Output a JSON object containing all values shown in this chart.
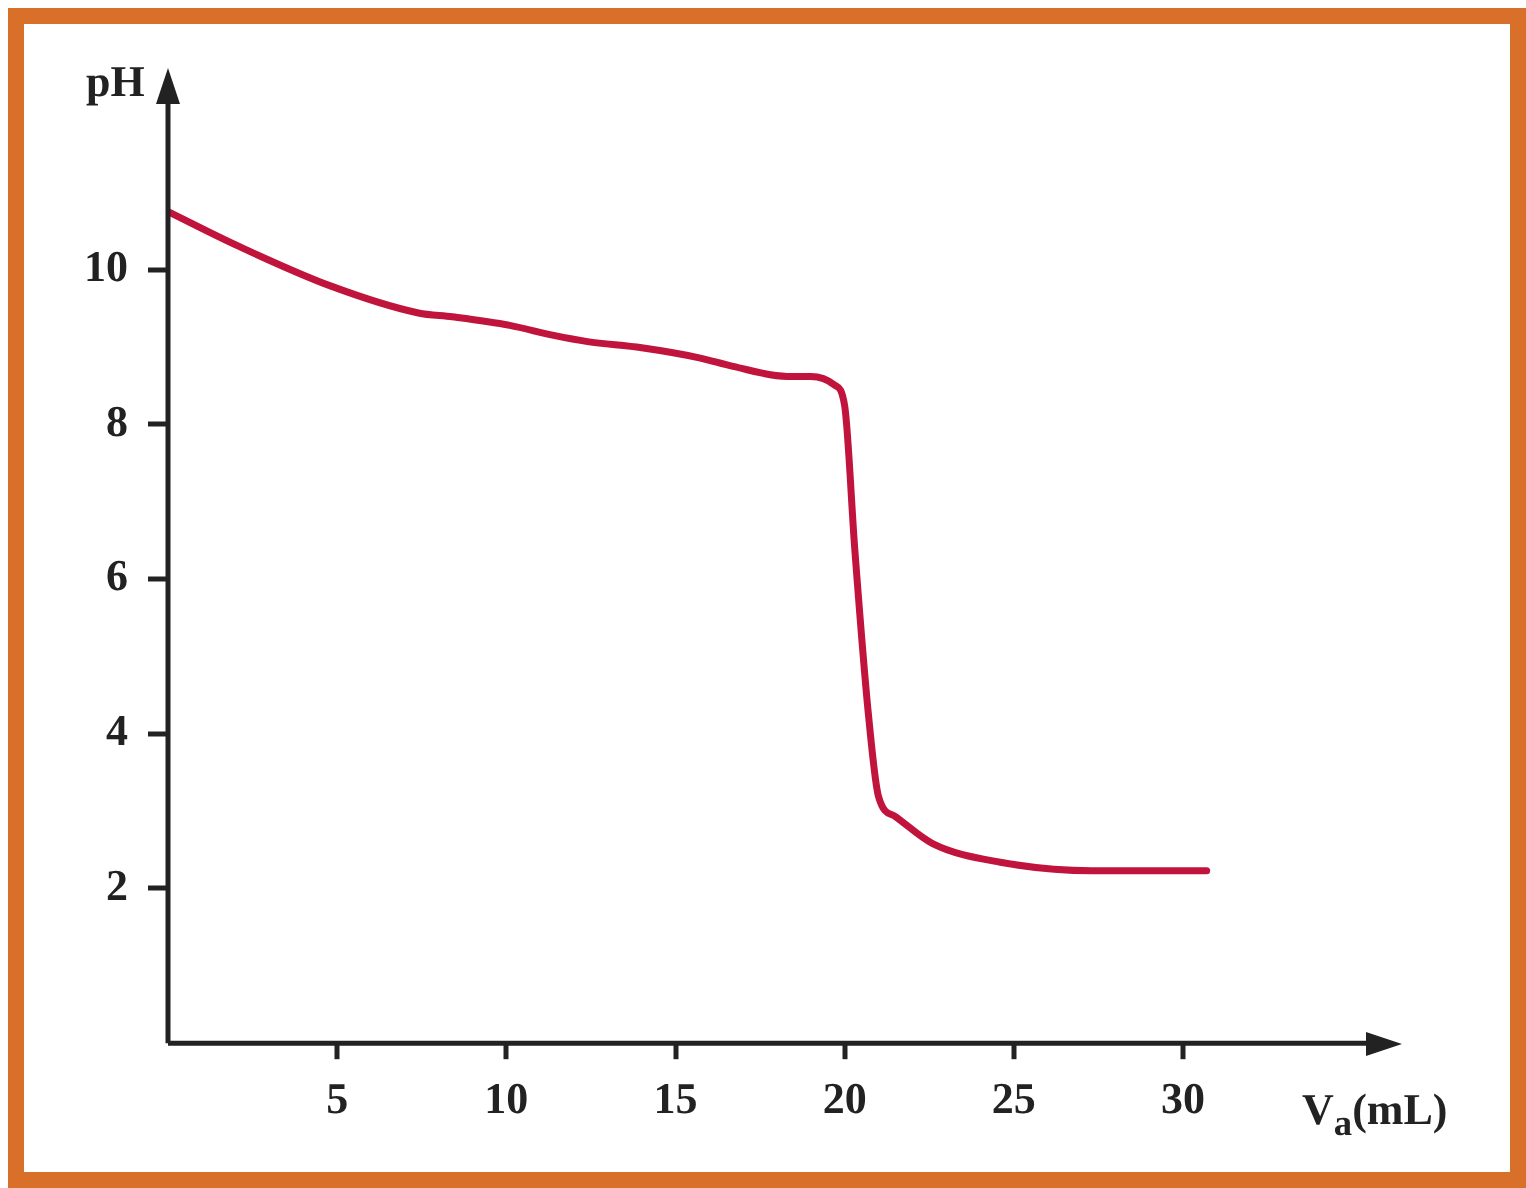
{
  "chart_data": {
    "type": "line",
    "xlabel": "V$_{a}$(mL)",
    "ylabel": "pH",
    "xlim": [
      0,
      36
    ],
    "ylim": [
      0,
      12.4
    ],
    "xticks": [
      5,
      10,
      15,
      20,
      25,
      30
    ],
    "yticks": [
      2,
      4,
      6,
      8,
      10
    ],
    "grid": false,
    "legend": false,
    "marker": "none",
    "line_style": "solid",
    "series": [
      {
        "color": "#c0143c",
        "x": [
          0,
          2.1,
          4.8,
          7.4,
          8.4,
          10.1,
          11.4,
          12.4,
          14.0,
          15.7,
          16.7,
          18.3,
          19.0,
          19.7,
          20.0,
          20.3,
          20.7,
          21.0,
          21.5,
          22.6,
          24.6,
          27.3,
          29.0,
          30.7
        ],
        "values": [
          10.75,
          10.3,
          9.79,
          9.44,
          9.39,
          9.28,
          9.15,
          9.07,
          8.99,
          8.86,
          8.75,
          8.62,
          8.62,
          8.51,
          8.24,
          6.38,
          4.26,
          3.19,
          2.93,
          2.58,
          2.34,
          2.23,
          2.23,
          2.23
        ]
      }
    ]
  }
}
